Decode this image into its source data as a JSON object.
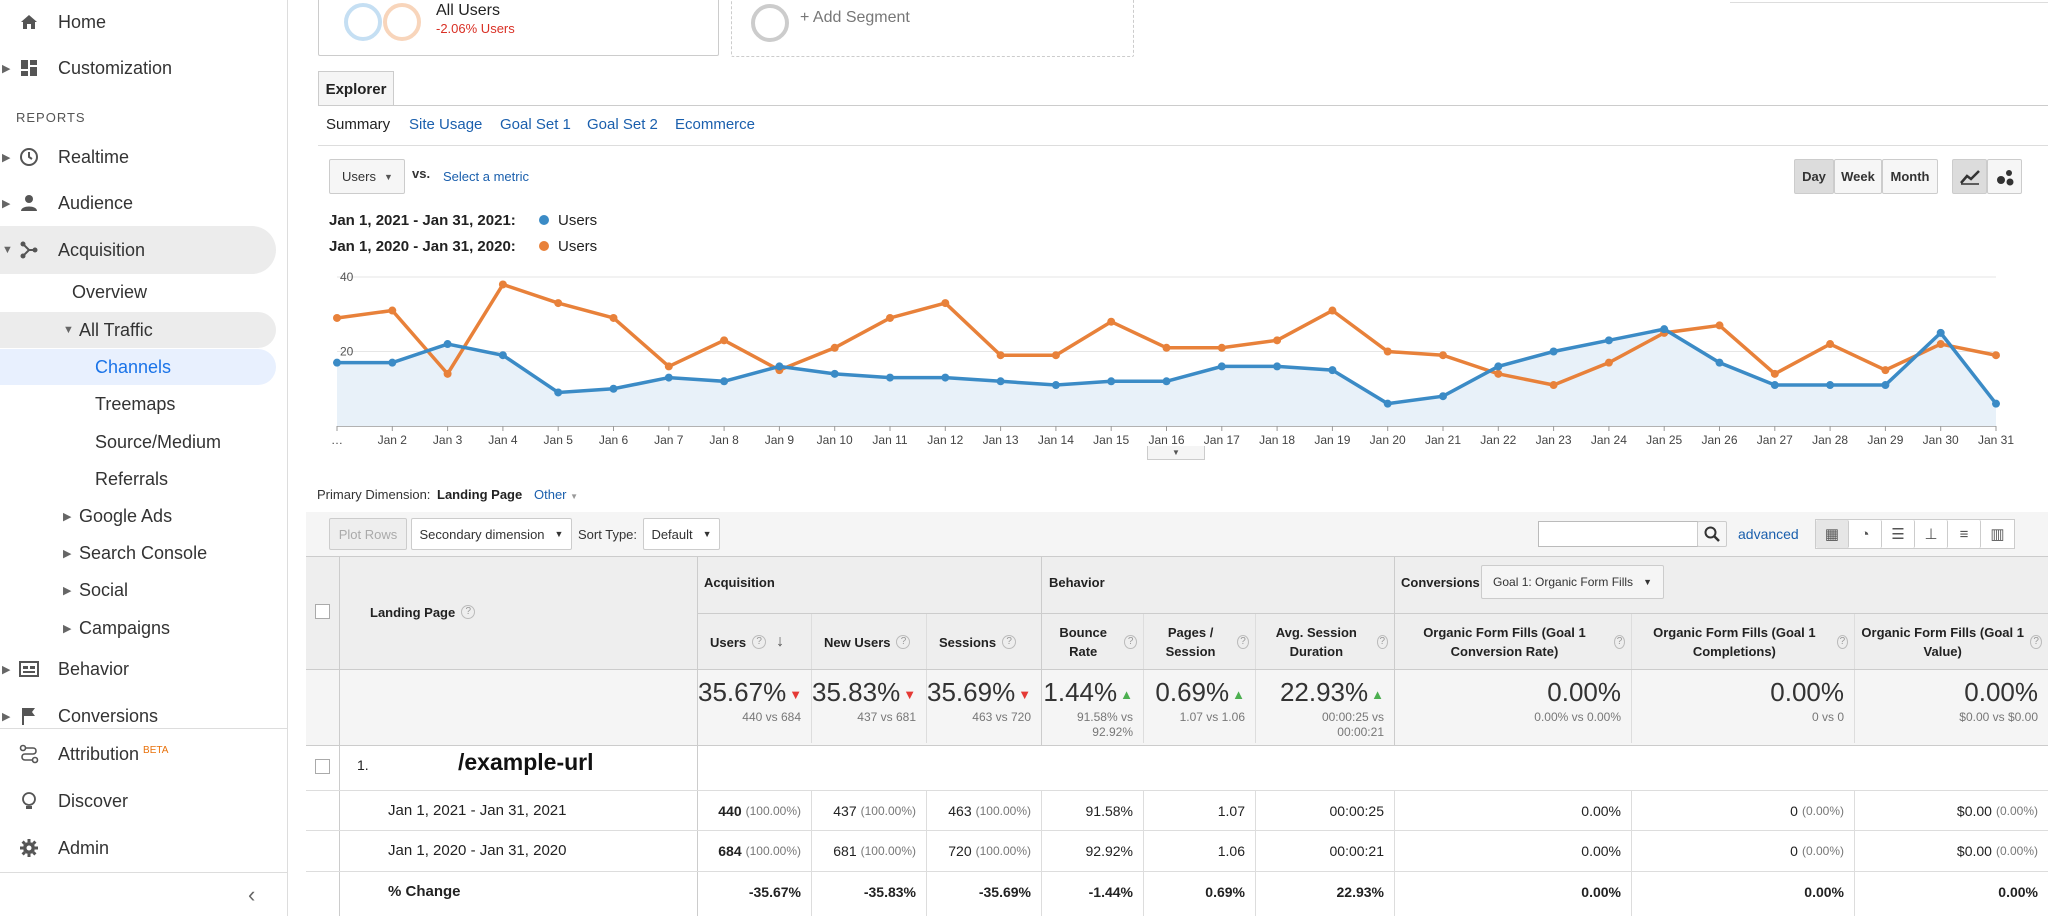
{
  "sidebar": {
    "home": "Home",
    "customization": "Customization",
    "reports_label": "REPORTS",
    "realtime": "Realtime",
    "audience": "Audience",
    "acquisition": "Acquisition",
    "overview": "Overview",
    "all_traffic": "All Traffic",
    "channels": "Channels",
    "treemaps": "Treemaps",
    "source_medium": "Source/Medium",
    "referrals": "Referrals",
    "google_ads": "Google Ads",
    "search_console": "Search Console",
    "social": "Social",
    "campaigns": "Campaigns",
    "behavior": "Behavior",
    "conversions": "Conversions",
    "attribution": "Attribution",
    "attribution_badge": "BETA",
    "discover": "Discover",
    "admin": "Admin"
  },
  "segments": {
    "all_users": "All Users",
    "all_users_change": "-2.06% Users",
    "add_segment": "+ Add Segment"
  },
  "tabs": {
    "explorer": "Explorer",
    "summary": "Summary",
    "site_usage": "Site Usage",
    "goal_set_1": "Goal Set 1",
    "goal_set_2": "Goal Set 2",
    "ecommerce": "Ecommerce"
  },
  "metric_controls": {
    "metric": "Users",
    "vs": "vs.",
    "select_metric": "Select a metric",
    "day": "Day",
    "week": "Week",
    "month": "Month"
  },
  "legend": {
    "range1": "Jan 1, 2021 - Jan 31, 2021:",
    "range1_series": "Users",
    "range2": "Jan 1, 2020 - Jan 31, 2020:",
    "range2_series": "Users"
  },
  "chart_data": {
    "type": "line",
    "x": [
      "…",
      "Jan 2",
      "Jan 3",
      "Jan 4",
      "Jan 5",
      "Jan 6",
      "Jan 7",
      "Jan 8",
      "Jan 9",
      "Jan 10",
      "Jan 11",
      "Jan 12",
      "Jan 13",
      "Jan 14",
      "Jan 15",
      "Jan 16",
      "Jan 17",
      "Jan 18",
      "Jan 19",
      "Jan 20",
      "Jan 21",
      "Jan 22",
      "Jan 23",
      "Jan 24",
      "Jan 25",
      "Jan 26",
      "Jan 27",
      "Jan 28",
      "Jan 29",
      "Jan 30",
      "Jan 31"
    ],
    "y_ticks": [
      "40",
      "20"
    ],
    "ylim": [
      0,
      40
    ],
    "series": [
      {
        "name": "Users",
        "color": "#3b8bc6",
        "period": "2021",
        "values": [
          17,
          17,
          22,
          19,
          9,
          10,
          13,
          12,
          16,
          14,
          13,
          13,
          12,
          11,
          12,
          12,
          16,
          16,
          15,
          6,
          8,
          16,
          20,
          23,
          26,
          17,
          11,
          11,
          11,
          25,
          6
        ]
      },
      {
        "name": "Users",
        "color": "#e8813a",
        "period": "2020",
        "values": [
          29,
          31,
          14,
          38,
          33,
          29,
          16,
          23,
          15,
          21,
          29,
          33,
          19,
          19,
          28,
          21,
          21,
          23,
          31,
          20,
          19,
          14,
          11,
          17,
          25,
          27,
          14,
          22,
          15,
          22,
          19
        ]
      }
    ]
  },
  "primary_dimension": {
    "label": "Primary Dimension:",
    "value": "Landing Page",
    "other": "Other"
  },
  "toolbar": {
    "plot_rows": "Plot Rows",
    "secondary_dimension": "Secondary dimension",
    "sort_type_label": "Sort Type:",
    "sort_type": "Default",
    "advanced": "advanced"
  },
  "table": {
    "landing_page_header": "Landing Page",
    "acquisition": "Acquisition",
    "behavior": "Behavior",
    "conversions": "Conversions",
    "goal_select": "Goal 1: Organic Form Fills",
    "columns": [
      "Users",
      "New Users",
      "Sessions",
      "Bounce Rate",
      "Pages / Session",
      "Avg. Session Duration",
      "Organic Form Fills (Goal 1 Conversion Rate)",
      "Organic Form Fills (Goal 1 Completions)",
      "Organic Form Fills (Goal 1 Value)"
    ],
    "totals": [
      {
        "value": "35.67%",
        "dir": "down",
        "sub": "440 vs 684"
      },
      {
        "value": "35.83%",
        "dir": "down",
        "sub": "437 vs 681"
      },
      {
        "value": "35.69%",
        "dir": "down",
        "sub": "463 vs 720"
      },
      {
        "value": "1.44%",
        "dir": "up",
        "sub": "91.58% vs 92.92%"
      },
      {
        "value": "0.69%",
        "dir": "up",
        "sub": "1.07 vs 1.06"
      },
      {
        "value": "22.93%",
        "dir": "up",
        "sub": "00:00:25 vs 00:00:21"
      },
      {
        "value": "0.00%",
        "dir": "",
        "sub": "0.00% vs 0.00%"
      },
      {
        "value": "0.00%",
        "dir": "",
        "sub": "0 vs 0"
      },
      {
        "value": "0.00%",
        "dir": "",
        "sub": "$0.00 vs $0.00"
      }
    ],
    "row_index": "1.",
    "row_page": "/example-url",
    "rows": [
      {
        "label": "Jan 1, 2021 - Jan 31, 2021",
        "cells": [
          {
            "v": "440",
            "p": "(100.00%)",
            "bold": true
          },
          {
            "v": "437",
            "p": "(100.00%)"
          },
          {
            "v": "463",
            "p": "(100.00%)"
          },
          {
            "v": "91.58%",
            "p": ""
          },
          {
            "v": "1.07",
            "p": ""
          },
          {
            "v": "00:00:25",
            "p": ""
          },
          {
            "v": "0.00%",
            "p": ""
          },
          {
            "v": "0",
            "p": "(0.00%)"
          },
          {
            "v": "$0.00",
            "p": "(0.00%)"
          }
        ]
      },
      {
        "label": "Jan 1, 2020 - Jan 31, 2020",
        "cells": [
          {
            "v": "684",
            "p": "(100.00%)",
            "bold": true
          },
          {
            "v": "681",
            "p": "(100.00%)"
          },
          {
            "v": "720",
            "p": "(100.00%)"
          },
          {
            "v": "92.92%",
            "p": ""
          },
          {
            "v": "1.06",
            "p": ""
          },
          {
            "v": "00:00:21",
            "p": ""
          },
          {
            "v": "0.00%",
            "p": ""
          },
          {
            "v": "0",
            "p": "(0.00%)"
          },
          {
            "v": "$0.00",
            "p": "(0.00%)"
          }
        ]
      },
      {
        "label": "% Change",
        "bold": true,
        "cells": [
          {
            "v": "-35.67%",
            "p": ""
          },
          {
            "v": "-35.83%",
            "p": ""
          },
          {
            "v": "-35.69%",
            "p": ""
          },
          {
            "v": "-1.44%",
            "p": ""
          },
          {
            "v": "0.69%",
            "p": ""
          },
          {
            "v": "22.93%",
            "p": ""
          },
          {
            "v": "0.00%",
            "p": ""
          },
          {
            "v": "0.00%",
            "p": ""
          },
          {
            "v": "0.00%",
            "p": ""
          }
        ]
      }
    ]
  }
}
